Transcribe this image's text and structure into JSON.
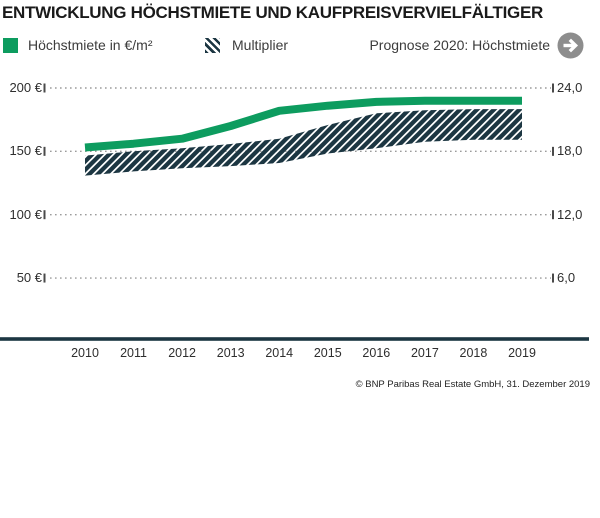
{
  "title": "ENTWICKLUNG HÖCHSTMIETE UND KAUFPREISVERVIELFÄLTIGER",
  "legend": {
    "rent_label": "Höchstmiete in €/m²",
    "multiplier_label": "Multiplier",
    "prognose_label": "Prognose 2020: Höchstmiete",
    "prognose_arrow_icon": "arrow-right-circle"
  },
  "footer_credit": "© BNP Paribas Real Estate GmbH, 31. Dezember 2019",
  "colors": {
    "accent_green": "#0d9c5f",
    "dark_navy": "#1c3642",
    "grid_dots": "#9b9b9b",
    "tick": "#4a4a4a",
    "arrow_circle_gray": "#8d8d8d",
    "text_dark": "#1a1a1a"
  },
  "chart_data": {
    "type": "line",
    "categories": [
      "2010",
      "2011",
      "2012",
      "2013",
      "2014",
      "2015",
      "2016",
      "2017",
      "2018",
      "2019"
    ],
    "series": [
      {
        "name": "Höchstmiete in €/m²",
        "axis": "left",
        "style": "thick-solid-line",
        "color": "#0d9c5f",
        "values": [
          153,
          156,
          160,
          170,
          182,
          186,
          189,
          190,
          190,
          190
        ]
      },
      {
        "name": "Multiplier",
        "axis": "right",
        "style": "hatched-band",
        "color": "#1c3642",
        "values": [
          17.6,
          18.0,
          18.3,
          18.7,
          19.2,
          20.5,
          21.6,
          21.9,
          22.0,
          22.0
        ],
        "band_lower": [
          15.7,
          16.1,
          16.4,
          16.6,
          16.9,
          17.8,
          18.3,
          18.9,
          19.1,
          19.1
        ]
      }
    ],
    "left_axis": {
      "tick_labels": [
        "200 €",
        "150 €",
        "100 €",
        "50 €"
      ],
      "tick_values": [
        200,
        150,
        100,
        50
      ],
      "unit": "€/m²"
    },
    "right_axis": {
      "tick_labels": [
        "24,0",
        "18,0",
        "12,0",
        "6,0"
      ],
      "tick_values": [
        24,
        18,
        12,
        6
      ],
      "unit": "multiplier"
    },
    "grid": "dotted-horizontal",
    "legend_position": "top",
    "title": "ENTWICKLUNG HÖCHSTMIETE UND KAUFPREISVERVIELFÄLTIGER"
  }
}
